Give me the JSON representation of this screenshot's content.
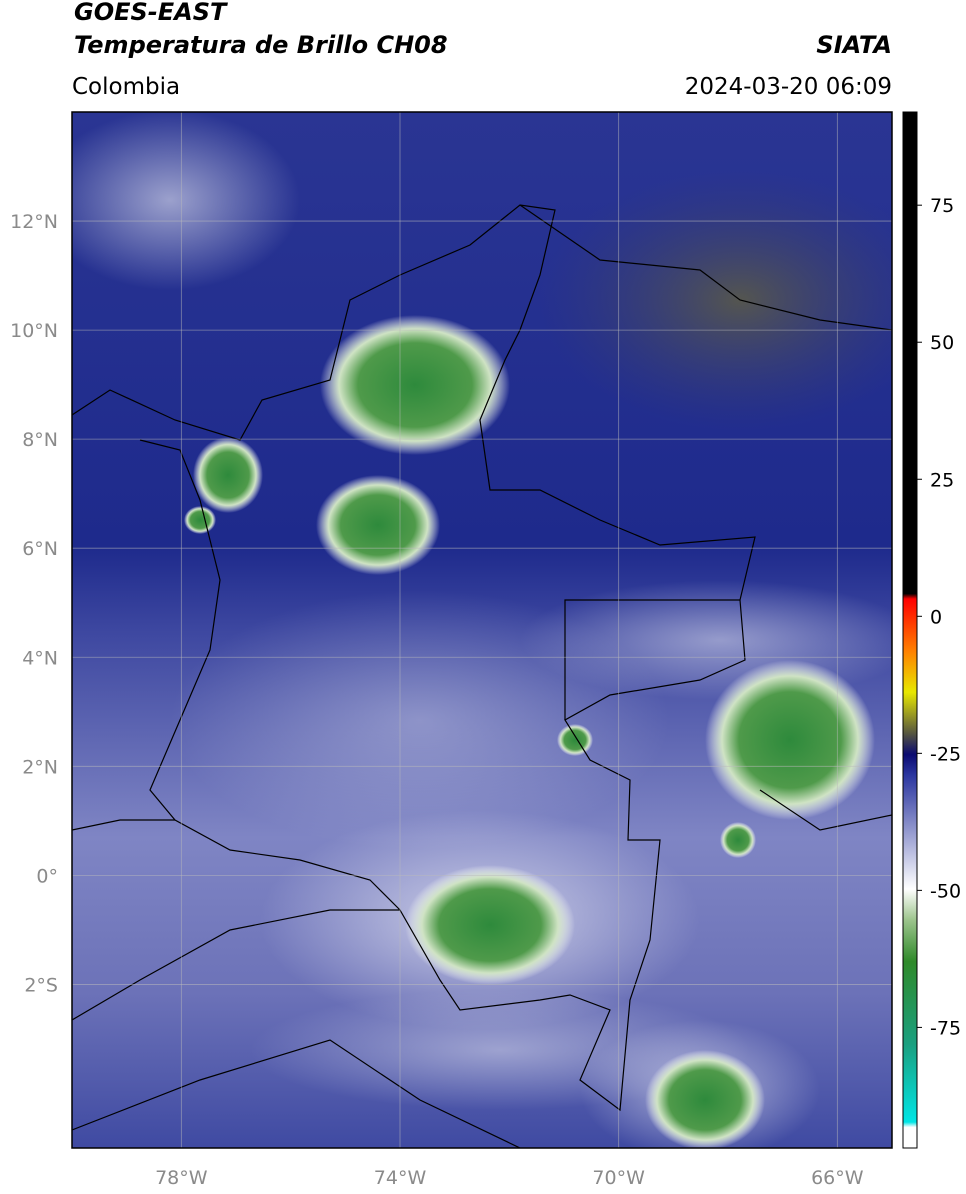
{
  "header": {
    "title": "GOES-EAST",
    "subtitle": "Temperatura de Brillo CH08",
    "source": "SIATA",
    "region": "Colombia",
    "datetime": "2024-03-20 06:09"
  },
  "map": {
    "xlim": [
      -80,
      -65
    ],
    "ylim": [
      -5,
      14
    ],
    "xticks": [
      {
        "value": -78,
        "label": "78°W"
      },
      {
        "value": -74,
        "label": "74°W"
      },
      {
        "value": -70,
        "label": "70°W"
      },
      {
        "value": -66,
        "label": "66°W"
      }
    ],
    "yticks": [
      {
        "value": 12,
        "label": "12°N"
      },
      {
        "value": 10,
        "label": "10°N"
      },
      {
        "value": 8,
        "label": "8°N"
      },
      {
        "value": 6,
        "label": "6°N"
      },
      {
        "value": 4,
        "label": "4°N"
      },
      {
        "value": 2,
        "label": "2°N"
      },
      {
        "value": 0,
        "label": "0°"
      },
      {
        "value": -2,
        "label": "2°S"
      }
    ],
    "grid": true
  },
  "colorbar": {
    "lim": [
      -97,
      92
    ],
    "ticks": [
      75,
      50,
      25,
      0,
      -25,
      -50,
      -75
    ]
  }
}
